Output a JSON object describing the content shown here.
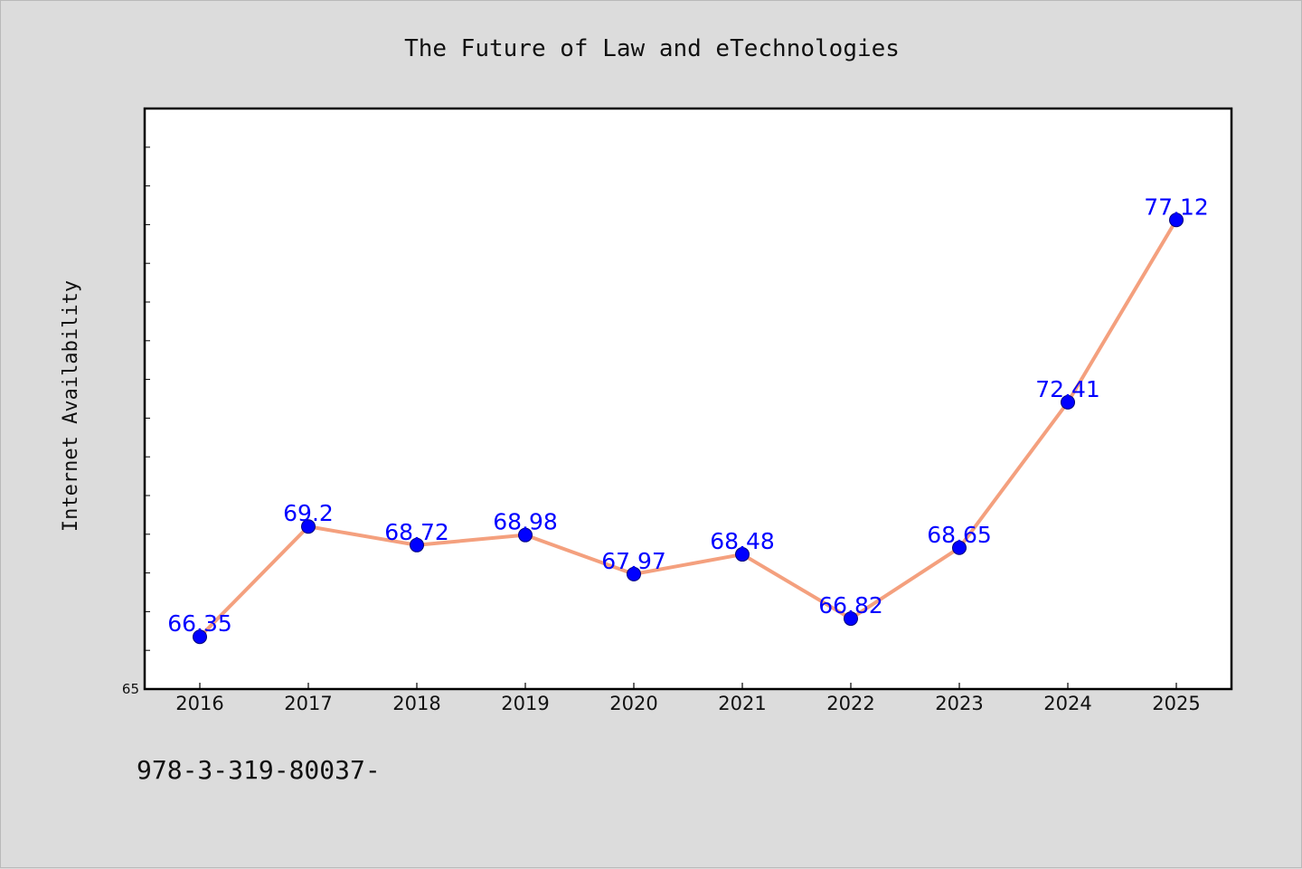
{
  "chart_data": {
    "type": "line",
    "title": "The Future of Law and eTechnologies",
    "xlabel": "",
    "ylabel": "Internet Availability",
    "categories": [
      "2016",
      "2017",
      "2018",
      "2019",
      "2020",
      "2021",
      "2022",
      "2023",
      "2024",
      "2025"
    ],
    "series": [
      {
        "values": [
          66.35,
          69.2,
          68.72,
          68.98,
          67.97,
          68.48,
          66.82,
          68.65,
          72.41,
          77.12
        ],
        "labels": [
          "66.35",
          "69.2",
          "68.72",
          "68.98",
          "67.97",
          "68.48",
          "66.82",
          "68.65",
          "72.41",
          "77.12"
        ],
        "line_color": "#f4a07e",
        "marker_color": "#0000ff"
      }
    ],
    "ylim": [
      65,
      80
    ],
    "ytick_labels": [
      "65"
    ],
    "grid": false,
    "legend": "none"
  },
  "footer": {
    "note": "978-3-319-80037-"
  }
}
